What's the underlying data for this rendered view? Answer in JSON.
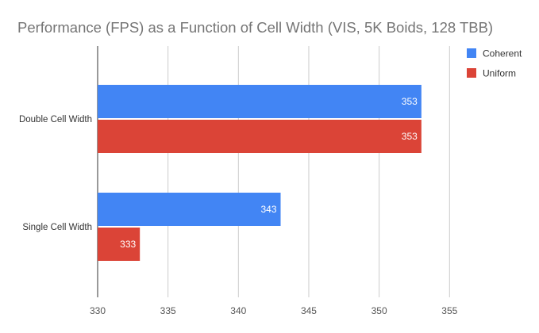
{
  "chart_data": {
    "type": "bar",
    "orientation": "horizontal",
    "title": "Performance (FPS) as a Function of Cell Width (VIS, 5K Boids, 128 TBB)",
    "xlabel": "",
    "ylabel": "",
    "categories": [
      "Double Cell Width",
      "Single Cell Width"
    ],
    "series": [
      {
        "name": "Coherent",
        "color": "#4285f4",
        "values": [
          353,
          343
        ]
      },
      {
        "name": "Uniform",
        "color": "#db4437",
        "values": [
          353,
          333
        ]
      }
    ],
    "xlim": [
      330,
      357
    ],
    "xticks": [
      330,
      335,
      340,
      345,
      350,
      355
    ],
    "grid": true,
    "legend": "top-right",
    "data_labels": true
  }
}
